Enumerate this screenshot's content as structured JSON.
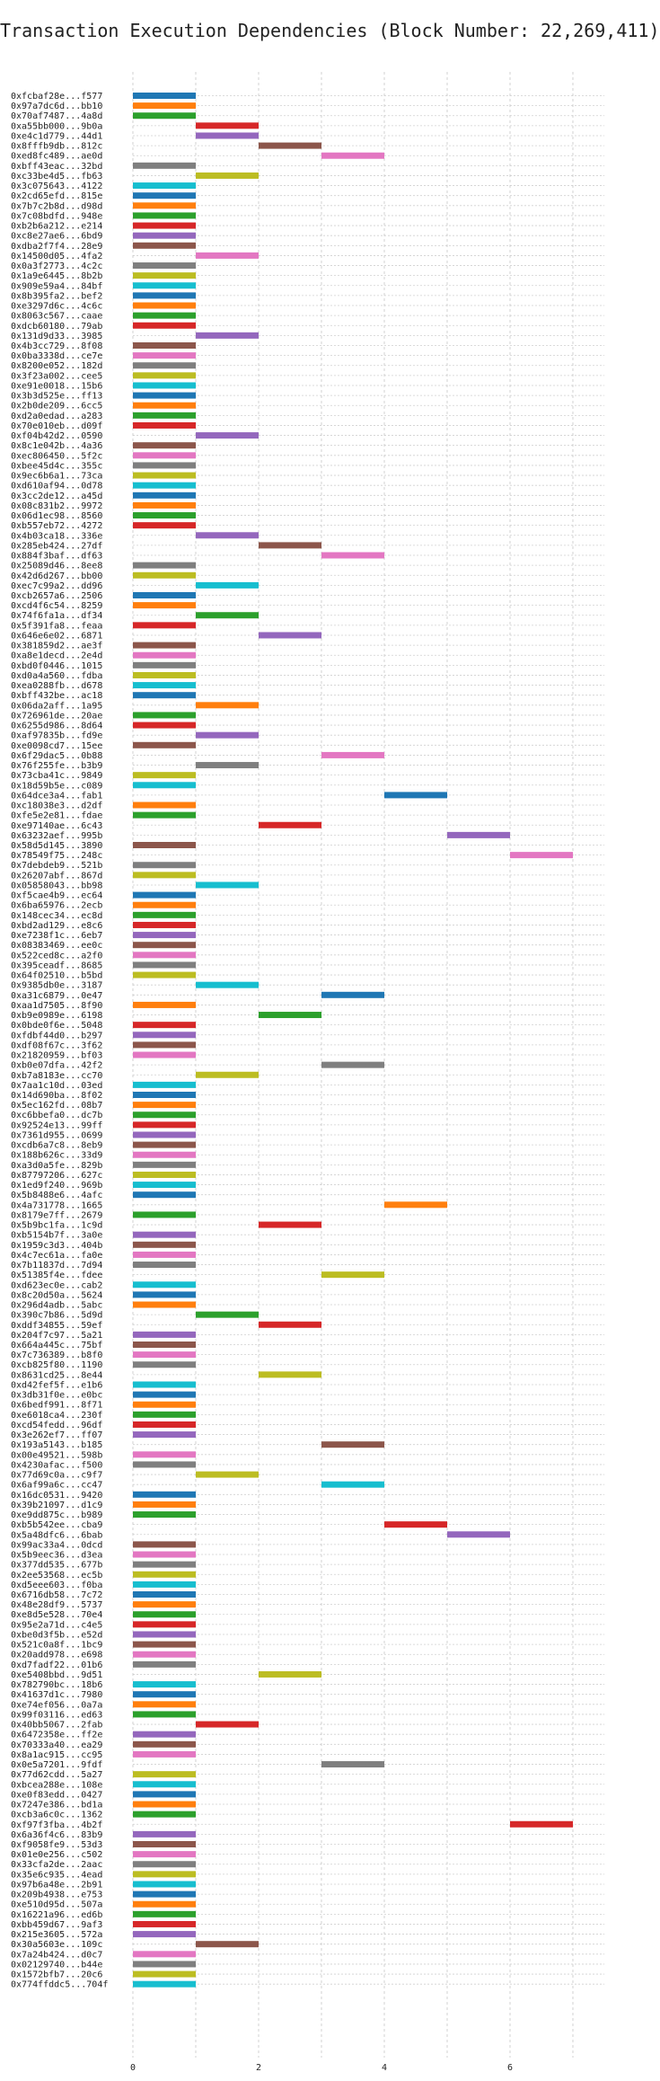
{
  "chart_data": {
    "type": "bar",
    "subtype": "gantt-horizontal",
    "title": "Transaction Execution Dependencies (Block Number: 22,269,411)",
    "xlabel": "",
    "ylabel": "",
    "xlim": [
      0,
      7.5
    ],
    "xticks": [
      0,
      2,
      4,
      6
    ],
    "grid": true,
    "legend": "none",
    "bar_width": 1,
    "colors": [
      "#1f77b4",
      "#ff7f0e",
      "#2ca02c",
      "#d62728",
      "#9467bd",
      "#8c564b",
      "#e377c2",
      "#7f7f7f",
      "#bcbd22",
      "#17becf"
    ],
    "transactions": [
      {
        "label": "0xfcbaf28e...f577",
        "start": 0
      },
      {
        "label": "0x97a7dc6d...bb10",
        "start": 0
      },
      {
        "label": "0x70af7487...4a8d",
        "start": 0
      },
      {
        "label": "0xa55bb000...9b0a",
        "start": 1
      },
      {
        "label": "0xe4c1d779...44d1",
        "start": 1
      },
      {
        "label": "0x8fffb9db...812c",
        "start": 2
      },
      {
        "label": "0xed8fc489...ae0d",
        "start": 3
      },
      {
        "label": "0xbff43eac...32bd",
        "start": 0
      },
      {
        "label": "0xc33be4d5...fb63",
        "start": 1
      },
      {
        "label": "0x3c075643...4122",
        "start": 0
      },
      {
        "label": "0x2cd65efd...815e",
        "start": 0
      },
      {
        "label": "0x7b7c2b8d...d98d",
        "start": 0
      },
      {
        "label": "0x7c08bdfd...948e",
        "start": 0
      },
      {
        "label": "0xb2b6a212...e214",
        "start": 0
      },
      {
        "label": "0xc8e27ae6...6bd9",
        "start": 0
      },
      {
        "label": "0xdba2f7f4...28e9",
        "start": 0
      },
      {
        "label": "0x14500d05...4fa2",
        "start": 1
      },
      {
        "label": "0x0a3f2773...4c2c",
        "start": 0
      },
      {
        "label": "0x1a9e6445...8b2b",
        "start": 0
      },
      {
        "label": "0x909e59a4...84bf",
        "start": 0
      },
      {
        "label": "0x8b395fa2...bef2",
        "start": 0
      },
      {
        "label": "0xe3297d6c...4c6c",
        "start": 0
      },
      {
        "label": "0x8063c567...caae",
        "start": 0
      },
      {
        "label": "0xdcb60180...79ab",
        "start": 0
      },
      {
        "label": "0x131d9d33...3985",
        "start": 1
      },
      {
        "label": "0x4b3cc729...8f08",
        "start": 0
      },
      {
        "label": "0x0ba3338d...ce7e",
        "start": 0
      },
      {
        "label": "0x8200e052...182d",
        "start": 0
      },
      {
        "label": "0x3f23a002...cee5",
        "start": 0
      },
      {
        "label": "0xe91e0018...15b6",
        "start": 0
      },
      {
        "label": "0x3b3d525e...ff13",
        "start": 0
      },
      {
        "label": "0x2b0de209...6cc5",
        "start": 0
      },
      {
        "label": "0xd2a0edad...a283",
        "start": 0
      },
      {
        "label": "0x70e010eb...d09f",
        "start": 0
      },
      {
        "label": "0xf04b42d2...0590",
        "start": 1
      },
      {
        "label": "0x8c1e042b...4a36",
        "start": 0
      },
      {
        "label": "0xec806450...5f2c",
        "start": 0
      },
      {
        "label": "0xbee45d4c...355c",
        "start": 0
      },
      {
        "label": "0x9ec6b6a1...73ca",
        "start": 0
      },
      {
        "label": "0xd610af94...0d78",
        "start": 0
      },
      {
        "label": "0x3cc2de12...a45d",
        "start": 0
      },
      {
        "label": "0x08c831b2...9972",
        "start": 0
      },
      {
        "label": "0x06d1ec98...8560",
        "start": 0
      },
      {
        "label": "0xb557eb72...4272",
        "start": 0
      },
      {
        "label": "0x4b03ca18...336e",
        "start": 1
      },
      {
        "label": "0x285eb424...27df",
        "start": 2
      },
      {
        "label": "0x884f3baf...df63",
        "start": 3
      },
      {
        "label": "0x25089d46...8ee8",
        "start": 0
      },
      {
        "label": "0x42d6d267...bb00",
        "start": 0
      },
      {
        "label": "0xec7c99a2...dd96",
        "start": 1
      },
      {
        "label": "0xcb2657a6...2506",
        "start": 0
      },
      {
        "label": "0xcd4f6c54...8259",
        "start": 0
      },
      {
        "label": "0x74f6fa1a...df34",
        "start": 1
      },
      {
        "label": "0x5f391fa8...feaa",
        "start": 0
      },
      {
        "label": "0x646e6e02...6871",
        "start": 2
      },
      {
        "label": "0x381859d2...ae3f",
        "start": 0
      },
      {
        "label": "0xa8e1decd...2e4d",
        "start": 0
      },
      {
        "label": "0xbd0f0446...1015",
        "start": 0
      },
      {
        "label": "0xd0a4a560...fdba",
        "start": 0
      },
      {
        "label": "0xea0288fb...d678",
        "start": 0
      },
      {
        "label": "0xbff432be...ac18",
        "start": 0
      },
      {
        "label": "0x06da2aff...1a95",
        "start": 1
      },
      {
        "label": "0x726961de...20ae",
        "start": 0
      },
      {
        "label": "0x6255d986...8d64",
        "start": 0
      },
      {
        "label": "0xaf97835b...fd9e",
        "start": 1
      },
      {
        "label": "0xe0098cd7...15ee",
        "start": 0
      },
      {
        "label": "0x6f29dac5...0b88",
        "start": 3
      },
      {
        "label": "0x76f255fe...b3b9",
        "start": 1
      },
      {
        "label": "0x73cba41c...9849",
        "start": 0
      },
      {
        "label": "0x18d59b5e...c089",
        "start": 0
      },
      {
        "label": "0x64dce3a4...fab1",
        "start": 4
      },
      {
        "label": "0xc18038e3...d2df",
        "start": 0
      },
      {
        "label": "0xfe5e2e81...fdae",
        "start": 0
      },
      {
        "label": "0xe97140ae...6c43",
        "start": 2
      },
      {
        "label": "0x63232aef...995b",
        "start": 5
      },
      {
        "label": "0x58d5d145...3890",
        "start": 0
      },
      {
        "label": "0x78549f75...248c",
        "start": 6
      },
      {
        "label": "0x7debdeb9...521b",
        "start": 0
      },
      {
        "label": "0x26207abf...867d",
        "start": 0
      },
      {
        "label": "0x05858043...bb98",
        "start": 1
      },
      {
        "label": "0xf5cae4b9...ec64",
        "start": 0
      },
      {
        "label": "0x6ba65976...2ecb",
        "start": 0
      },
      {
        "label": "0x148cec34...ec8d",
        "start": 0
      },
      {
        "label": "0xbd2ad129...e8c6",
        "start": 0
      },
      {
        "label": "0xe7238f1c...6eb7",
        "start": 0
      },
      {
        "label": "0x08383469...ee0c",
        "start": 0
      },
      {
        "label": "0x522ced8c...a2f0",
        "start": 0
      },
      {
        "label": "0x395ceadf...8685",
        "start": 0
      },
      {
        "label": "0x64f02510...b5bd",
        "start": 0
      },
      {
        "label": "0x9385db0e...3187",
        "start": 1
      },
      {
        "label": "0xa31c6879...0e47",
        "start": 3
      },
      {
        "label": "0xaa1d7505...8f90",
        "start": 0
      },
      {
        "label": "0xb9e0989e...6198",
        "start": 2
      },
      {
        "label": "0x0bde0f6e...5048",
        "start": 0
      },
      {
        "label": "0xfdbf44d0...b297",
        "start": 0
      },
      {
        "label": "0xdf08f67c...3f62",
        "start": 0
      },
      {
        "label": "0x21820959...bf03",
        "start": 0
      },
      {
        "label": "0xb0e07dfa...42f2",
        "start": 3
      },
      {
        "label": "0xb7a8183e...cc70",
        "start": 1
      },
      {
        "label": "0x7aa1c10d...03ed",
        "start": 0
      },
      {
        "label": "0x14d690ba...8f02",
        "start": 0
      },
      {
        "label": "0x5ec162fd...08b7",
        "start": 0
      },
      {
        "label": "0xc6bbefa0...dc7b",
        "start": 0
      },
      {
        "label": "0x92524e13...99ff",
        "start": 0
      },
      {
        "label": "0x7361d955...0699",
        "start": 0
      },
      {
        "label": "0xcdb6a7c8...8eb9",
        "start": 0
      },
      {
        "label": "0x188b626c...33d9",
        "start": 0
      },
      {
        "label": "0xa3d0a5fe...829b",
        "start": 0
      },
      {
        "label": "0x87797206...627c",
        "start": 0
      },
      {
        "label": "0x1ed9f240...969b",
        "start": 0
      },
      {
        "label": "0x5b8488e6...4afc",
        "start": 0
      },
      {
        "label": "0x4a731778...1665",
        "start": 4
      },
      {
        "label": "0x8179e7ff...2679",
        "start": 0
      },
      {
        "label": "0x5b9bc1fa...1c9d",
        "start": 2
      },
      {
        "label": "0xb5154b7f...3a0e",
        "start": 0
      },
      {
        "label": "0x1959c3d3...404b",
        "start": 0
      },
      {
        "label": "0x4c7ec61a...fa0e",
        "start": 0
      },
      {
        "label": "0x7b11837d...7d94",
        "start": 0
      },
      {
        "label": "0x51385f4e...fdee",
        "start": 3
      },
      {
        "label": "0xd623ec0e...cab2",
        "start": 0
      },
      {
        "label": "0x8c20d50a...5624",
        "start": 0
      },
      {
        "label": "0x296d4adb...5abc",
        "start": 0
      },
      {
        "label": "0x390c7b86...5d9d",
        "start": 1
      },
      {
        "label": "0xddf34855...59ef",
        "start": 2
      },
      {
        "label": "0x204f7c97...5a21",
        "start": 0
      },
      {
        "label": "0x664a445c...75bf",
        "start": 0
      },
      {
        "label": "0x7c736389...b8f0",
        "start": 0
      },
      {
        "label": "0xcb825f80...1190",
        "start": 0
      },
      {
        "label": "0x8631cd25...8e44",
        "start": 2
      },
      {
        "label": "0xd42fef5f...e1b6",
        "start": 0
      },
      {
        "label": "0x3db31f0e...e0bc",
        "start": 0
      },
      {
        "label": "0x6bedf991...8f71",
        "start": 0
      },
      {
        "label": "0xe6018ca4...230f",
        "start": 0
      },
      {
        "label": "0xcd54fedd...96df",
        "start": 0
      },
      {
        "label": "0x3e262ef7...ff07",
        "start": 0
      },
      {
        "label": "0x193a5143...b185",
        "start": 3
      },
      {
        "label": "0x00e49521...598b",
        "start": 0
      },
      {
        "label": "0x4230afac...f500",
        "start": 0
      },
      {
        "label": "0x77d69c0a...c9f7",
        "start": 1
      },
      {
        "label": "0x6af99a6c...cc47",
        "start": 3
      },
      {
        "label": "0x16dc0531...9420",
        "start": 0
      },
      {
        "label": "0x39b21097...d1c9",
        "start": 0
      },
      {
        "label": "0xe9dd875c...b989",
        "start": 0
      },
      {
        "label": "0xb5b542ee...cba9",
        "start": 4
      },
      {
        "label": "0x5a48dfc6...6bab",
        "start": 5
      },
      {
        "label": "0x99ac33a4...0dcd",
        "start": 0
      },
      {
        "label": "0x5b9eec36...d3ea",
        "start": 0
      },
      {
        "label": "0x377dd535...677b",
        "start": 0
      },
      {
        "label": "0x2ee53568...ec5b",
        "start": 0
      },
      {
        "label": "0xd5eee603...f0ba",
        "start": 0
      },
      {
        "label": "0x6716db58...7c72",
        "start": 0
      },
      {
        "label": "0x48e28df9...5737",
        "start": 0
      },
      {
        "label": "0xe8d5e528...70e4",
        "start": 0
      },
      {
        "label": "0x95e2a71d...c4e5",
        "start": 0
      },
      {
        "label": "0xbe0d3f5b...e52d",
        "start": 0
      },
      {
        "label": "0x521c0a8f...1bc9",
        "start": 0
      },
      {
        "label": "0x20add978...e698",
        "start": 0
      },
      {
        "label": "0xd7fadf22...01b6",
        "start": 0
      },
      {
        "label": "0xe5408bbd...9d51",
        "start": 2
      },
      {
        "label": "0x782790bc...18b6",
        "start": 0
      },
      {
        "label": "0x41637d1c...7980",
        "start": 0
      },
      {
        "label": "0xe74ef056...0a7a",
        "start": 0
      },
      {
        "label": "0x99f03116...ed63",
        "start": 0
      },
      {
        "label": "0x40bb5067...2fab",
        "start": 1
      },
      {
        "label": "0x6472358e...ff2e",
        "start": 0
      },
      {
        "label": "0x70333a40...ea29",
        "start": 0
      },
      {
        "label": "0x8a1ac915...cc95",
        "start": 0
      },
      {
        "label": "0x0e5a7201...9fdf",
        "start": 3
      },
      {
        "label": "0x77d62cdd...5a27",
        "start": 0
      },
      {
        "label": "0xbcea288e...108e",
        "start": 0
      },
      {
        "label": "0xe0f83edd...0427",
        "start": 0
      },
      {
        "label": "0x7247e386...bd1a",
        "start": 0
      },
      {
        "label": "0xcb3a6c0c...1362",
        "start": 0
      },
      {
        "label": "0xf97f3fba...4b2f",
        "start": 6
      },
      {
        "label": "0x6a36f4c6...83b9",
        "start": 0
      },
      {
        "label": "0xf9058fe9...53d3",
        "start": 0
      },
      {
        "label": "0x01e0e256...c502",
        "start": 0
      },
      {
        "label": "0x33cfa2de...2aac",
        "start": 0
      },
      {
        "label": "0x35e6c935...4ead",
        "start": 0
      },
      {
        "label": "0x97b6a48e...2b91",
        "start": 0
      },
      {
        "label": "0x209b4938...e753",
        "start": 0
      },
      {
        "label": "0xe510d95d...507a",
        "start": 0
      },
      {
        "label": "0x16221a96...ed6b",
        "start": 0
      },
      {
        "label": "0xbb459d67...9af3",
        "start": 0
      },
      {
        "label": "0x215e3605...572a",
        "start": 0
      },
      {
        "label": "0x30a5603e...109c",
        "start": 1
      },
      {
        "label": "0x7a24b424...d0c7",
        "start": 0
      },
      {
        "label": "0x02129740...b44e",
        "start": 0
      },
      {
        "label": "0x1572bfb7...20c6",
        "start": 0
      },
      {
        "label": "0x774ffddc5...704f",
        "start": 0
      }
    ]
  }
}
